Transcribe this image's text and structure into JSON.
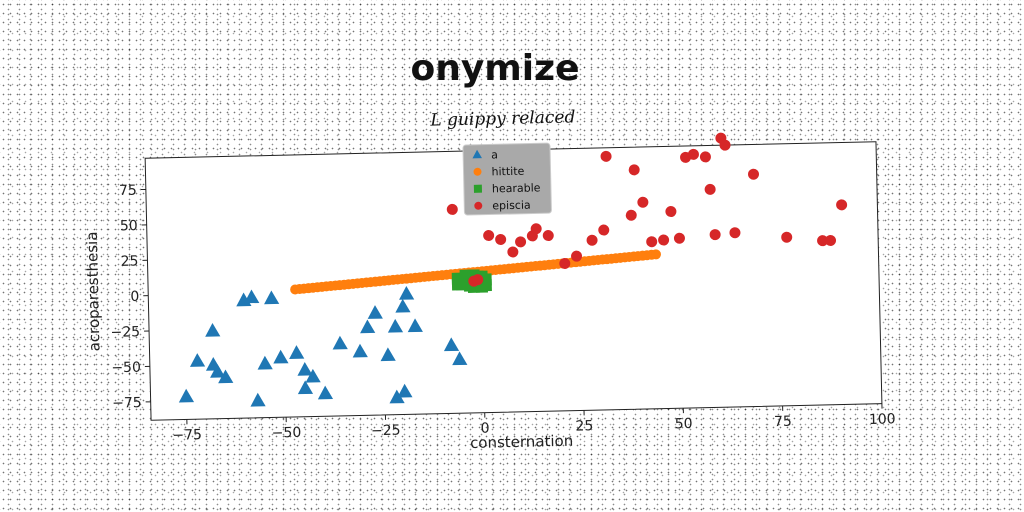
{
  "chart_data": {
    "type": "scatter",
    "title": "onymize",
    "subtitle": "L guippy relaced",
    "xlabel": "consternation",
    "ylabel": "acroparesthesia",
    "xlim": [
      -84,
      100
    ],
    "ylim": [
      -88,
      97
    ],
    "xticks": [
      -75,
      -50,
      -25,
      0,
      25,
      50,
      75,
      100
    ],
    "yticks": [
      -75,
      -50,
      -25,
      0,
      25,
      50,
      75
    ],
    "xtick_labels": [
      "−75",
      "−50",
      "−25",
      "0",
      "25",
      "50",
      "75",
      "100"
    ],
    "ytick_labels": [
      "−75",
      "−50",
      "−25",
      "0",
      "25",
      "50",
      "75"
    ],
    "grid": false,
    "legend_position": "top-center",
    "series": [
      {
        "name": "a",
        "marker": "triangle",
        "color": "#1f77b4",
        "points": [
          [
            -75,
            -72
          ],
          [
            -72,
            -47
          ],
          [
            -68,
            -26
          ],
          [
            -68,
            -50
          ],
          [
            -67,
            -55
          ],
          [
            -65,
            -59
          ],
          [
            -60,
            -5
          ],
          [
            -58,
            -3
          ],
          [
            -57,
            -76
          ],
          [
            -55,
            -50
          ],
          [
            -53,
            -4
          ],
          [
            -51,
            -46
          ],
          [
            -47,
            -43
          ],
          [
            -45,
            -55
          ],
          [
            -45,
            -68
          ],
          [
            -43,
            -60
          ],
          [
            -40,
            -72
          ],
          [
            -36,
            -37
          ],
          [
            -31,
            -43
          ],
          [
            -29,
            -26
          ],
          [
            -27,
            -16
          ],
          [
            -24,
            -46
          ],
          [
            -22,
            -26
          ],
          [
            -22,
            -76
          ],
          [
            -20,
            -72
          ],
          [
            -20,
            -12
          ],
          [
            -19,
            -3
          ],
          [
            -17,
            -26
          ],
          [
            -8,
            -40
          ],
          [
            -6,
            -50
          ]
        ]
      },
      {
        "name": "hittite",
        "marker": "circle",
        "color": "#ff7f0e",
        "line_from": [
          -47,
          2
        ],
        "line_to": [
          44,
          21
        ],
        "point_count": 82
      },
      {
        "name": "hearable",
        "marker": "square",
        "color": "#2ca02c",
        "points": [
          [
            -6,
            7
          ],
          [
            -5,
            3
          ],
          [
            -4,
            9
          ],
          [
            -3,
            5
          ],
          [
            -2,
            1
          ],
          [
            -1,
            8
          ],
          [
            0,
            4
          ],
          [
            1,
            6
          ],
          [
            -5,
            5
          ],
          [
            -3,
            2
          ],
          [
            -1,
            3
          ],
          [
            0,
            8
          ],
          [
            -4,
            7
          ],
          [
            -2,
            6
          ],
          [
            1,
            2
          ],
          [
            -6,
            3
          ],
          [
            0,
            1
          ],
          [
            -2,
            9
          ]
        ]
      },
      {
        "name": "episcia",
        "marker": "circle",
        "color": "#d62728",
        "points": [
          [
            -7,
            56
          ],
          [
            -2,
            5
          ],
          [
            -1,
            6
          ],
          [
            2,
            37
          ],
          [
            5,
            34
          ],
          [
            8,
            25
          ],
          [
            10,
            32
          ],
          [
            13,
            36
          ],
          [
            14,
            41
          ],
          [
            17,
            36
          ],
          [
            21,
            16
          ],
          [
            24,
            21
          ],
          [
            28,
            32
          ],
          [
            31,
            39
          ],
          [
            32,
            91
          ],
          [
            38,
            49
          ],
          [
            39,
            81
          ],
          [
            41,
            58
          ],
          [
            43,
            30
          ],
          [
            46,
            31
          ],
          [
            48,
            51
          ],
          [
            50,
            32
          ],
          [
            52,
            89
          ],
          [
            54,
            91
          ],
          [
            57,
            89
          ],
          [
            58,
            66
          ],
          [
            59,
            34
          ],
          [
            61,
            102
          ],
          [
            62,
            97
          ],
          [
            64,
            35
          ],
          [
            69,
            76
          ],
          [
            77,
            31
          ],
          [
            86,
            28
          ],
          [
            88,
            28
          ],
          [
            91,
            53
          ]
        ]
      }
    ]
  }
}
